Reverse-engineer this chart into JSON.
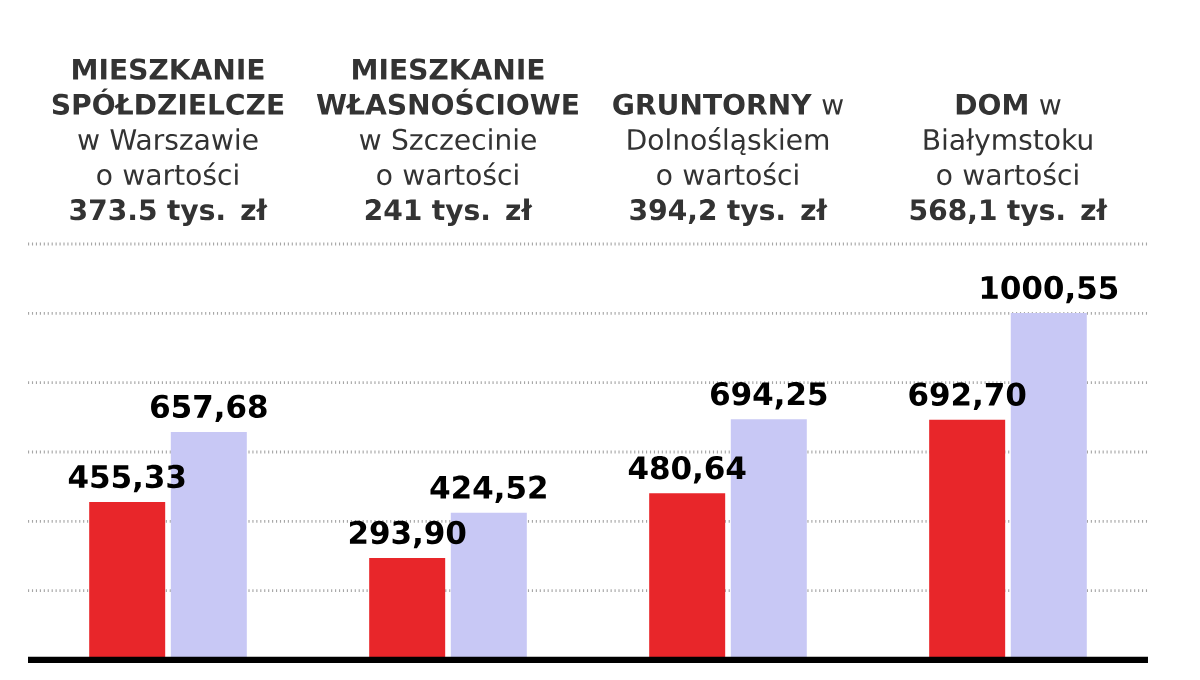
{
  "chart_data": {
    "type": "bar",
    "categories": [
      "**MIESZKANIE SPÓŁDZIELCZE** w Warszawie o wartości **373.5 tys. zł**",
      "**MIESZKANIE WŁASNOŚCIOWE** w Szczecinie o wartości **241 tys. zł**",
      "**GRUNTORNY** w Dolnośląskiem o wartości **394,2 tys. zł**",
      "**DOM** w Białymstoku o wartości **568,1 tys. zł**"
    ],
    "series": [
      {
        "color": "#e8262a",
        "values": [
          455.33,
          293.9,
          480.64,
          692.7
        ],
        "value_labels": [
          "455,33",
          "293,90",
          "480,64",
          "692,70"
        ]
      },
      {
        "color": "#c8c8f5",
        "values": [
          657.68,
          424.52,
          694.25,
          1000.55
        ],
        "value_labels": [
          "657,68",
          "424,52",
          "694,25",
          "1000,55"
        ]
      }
    ],
    "ylim": [
      0,
      1200
    ],
    "grid": "y",
    "tick_labels": "x"
  }
}
